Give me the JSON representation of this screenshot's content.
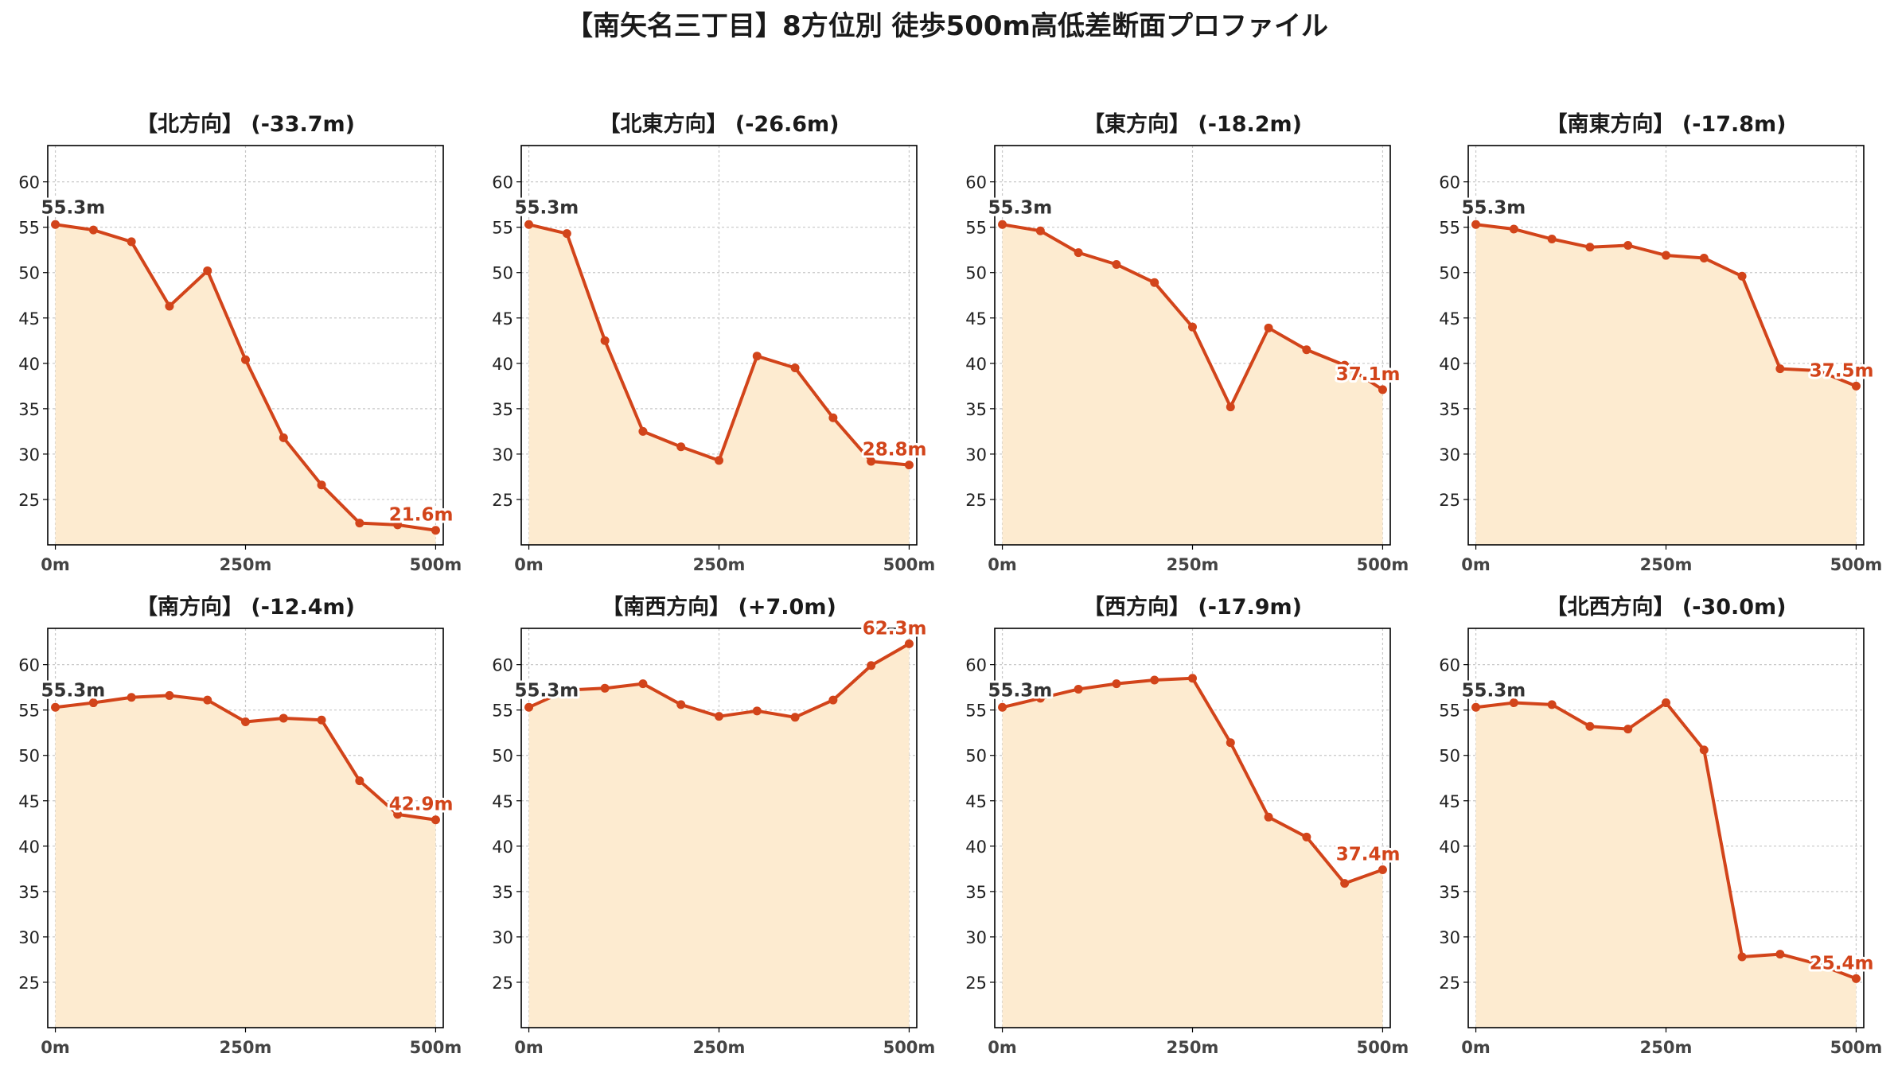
{
  "title": "【南矢名三丁目】8方位別 徒歩500m高低差断面プロファイル",
  "colors": {
    "line": "#d2441a",
    "fill": "#fdebd0",
    "start_label": "#333333",
    "grid": "#c8c8c8",
    "axis": "#000000"
  },
  "chart_data": [
    {
      "type": "area",
      "title": "【北方向】 (-33.7m)",
      "x": [
        0,
        50,
        100,
        150,
        200,
        250,
        300,
        350,
        400,
        450,
        500
      ],
      "values": [
        55.3,
        54.7,
        53.4,
        46.3,
        50.2,
        40.4,
        31.8,
        26.6,
        22.4,
        22.2,
        21.6
      ],
      "start_label": "55.3m",
      "end_label": "21.6m",
      "xticks": [
        "0m",
        "250m",
        "500m"
      ],
      "yticks": [
        25,
        30,
        35,
        40,
        45,
        50,
        55,
        60
      ],
      "ylim": [
        20,
        64
      ],
      "xlim": [
        -10,
        510
      ],
      "grid": true
    },
    {
      "type": "area",
      "title": "【北東方向】 (-26.6m)",
      "x": [
        0,
        50,
        100,
        150,
        200,
        250,
        300,
        350,
        400,
        450,
        500
      ],
      "values": [
        55.3,
        54.3,
        42.5,
        32.5,
        30.8,
        29.3,
        40.8,
        39.5,
        34.0,
        29.2,
        28.8
      ],
      "start_label": "55.3m",
      "end_label": "28.8m",
      "xticks": [
        "0m",
        "250m",
        "500m"
      ],
      "yticks": [
        25,
        30,
        35,
        40,
        45,
        50,
        55,
        60
      ],
      "ylim": [
        20,
        64
      ],
      "xlim": [
        -10,
        510
      ],
      "grid": true
    },
    {
      "type": "area",
      "title": "【東方向】 (-18.2m)",
      "x": [
        0,
        50,
        100,
        150,
        200,
        250,
        300,
        350,
        400,
        450,
        500
      ],
      "values": [
        55.3,
        54.6,
        52.2,
        50.9,
        48.9,
        44.0,
        35.2,
        43.9,
        41.5,
        39.8,
        37.1
      ],
      "start_label": "55.3m",
      "end_label": "37.1m",
      "xticks": [
        "0m",
        "250m",
        "500m"
      ],
      "yticks": [
        25,
        30,
        35,
        40,
        45,
        50,
        55,
        60
      ],
      "ylim": [
        20,
        64
      ],
      "xlim": [
        -10,
        510
      ],
      "grid": true
    },
    {
      "type": "area",
      "title": "【南東方向】 (-17.8m)",
      "x": [
        0,
        50,
        100,
        150,
        200,
        250,
        300,
        350,
        400,
        450,
        500
      ],
      "values": [
        55.3,
        54.8,
        53.7,
        52.8,
        53.0,
        51.9,
        51.6,
        49.6,
        39.4,
        39.2,
        37.5
      ],
      "start_label": "55.3m",
      "end_label": "37.5m",
      "xticks": [
        "0m",
        "250m",
        "500m"
      ],
      "yticks": [
        25,
        30,
        35,
        40,
        45,
        50,
        55,
        60
      ],
      "ylim": [
        20,
        64
      ],
      "xlim": [
        -10,
        510
      ],
      "grid": true
    },
    {
      "type": "area",
      "title": "【南方向】 (-12.4m)",
      "x": [
        0,
        50,
        100,
        150,
        200,
        250,
        300,
        350,
        400,
        450,
        500
      ],
      "values": [
        55.3,
        55.8,
        56.4,
        56.6,
        56.1,
        53.7,
        54.1,
        53.9,
        47.2,
        43.5,
        42.9
      ],
      "start_label": "55.3m",
      "end_label": "42.9m",
      "xticks": [
        "0m",
        "250m",
        "500m"
      ],
      "yticks": [
        25,
        30,
        35,
        40,
        45,
        50,
        55,
        60
      ],
      "ylim": [
        20,
        64
      ],
      "xlim": [
        -10,
        510
      ],
      "grid": true
    },
    {
      "type": "area",
      "title": "【南西方向】 (+7.0m)",
      "x": [
        0,
        50,
        100,
        150,
        200,
        250,
        300,
        350,
        400,
        450,
        500
      ],
      "values": [
        55.3,
        57.2,
        57.4,
        57.9,
        55.6,
        54.3,
        54.9,
        54.2,
        56.1,
        59.9,
        62.3
      ],
      "start_label": "55.3m",
      "end_label": "62.3m",
      "xticks": [
        "0m",
        "250m",
        "500m"
      ],
      "yticks": [
        25,
        30,
        35,
        40,
        45,
        50,
        55,
        60
      ],
      "ylim": [
        20,
        64
      ],
      "xlim": [
        -10,
        510
      ],
      "grid": true
    },
    {
      "type": "area",
      "title": "【西方向】 (-17.9m)",
      "x": [
        0,
        50,
        100,
        150,
        200,
        250,
        300,
        350,
        400,
        450,
        500
      ],
      "values": [
        55.3,
        56.3,
        57.3,
        57.9,
        58.3,
        58.5,
        51.4,
        43.2,
        41.0,
        35.9,
        37.4
      ],
      "start_label": "55.3m",
      "end_label": "37.4m",
      "xticks": [
        "0m",
        "250m",
        "500m"
      ],
      "yticks": [
        25,
        30,
        35,
        40,
        45,
        50,
        55,
        60
      ],
      "ylim": [
        20,
        64
      ],
      "xlim": [
        -10,
        510
      ],
      "grid": true
    },
    {
      "type": "area",
      "title": "【北西方向】 (-30.0m)",
      "x": [
        0,
        50,
        100,
        150,
        200,
        250,
        300,
        350,
        400,
        450,
        500
      ],
      "values": [
        55.3,
        55.8,
        55.6,
        53.2,
        52.9,
        55.8,
        50.6,
        27.8,
        28.1,
        27.0,
        25.4
      ],
      "start_label": "55.3m",
      "end_label": "25.4m",
      "xticks": [
        "0m",
        "250m",
        "500m"
      ],
      "yticks": [
        25,
        30,
        35,
        40,
        45,
        50,
        55,
        60
      ],
      "ylim": [
        20,
        64
      ],
      "xlim": [
        -10,
        510
      ],
      "grid": true
    }
  ]
}
